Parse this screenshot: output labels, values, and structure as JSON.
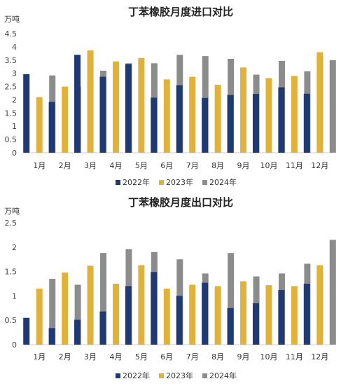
{
  "colors": {
    "2022年": "#1f3a73",
    "2023年": "#e0b23a",
    "2024年": "#8c8c8c"
  },
  "chart_data": [
    {
      "type": "bar",
      "title": "丁苯橡胶月度进口对比",
      "ylabel": "万吨",
      "categories": [
        "1月",
        "2月",
        "3月",
        "4月",
        "5月",
        "6月",
        "7月",
        "8月",
        "9月",
        "10月",
        "11月",
        "12月"
      ],
      "ylim": [
        0,
        4.5
      ],
      "yticks": [
        "0",
        "0.5",
        "1",
        "1.5",
        "2",
        "2.5",
        "3",
        "3.5",
        "4",
        "4.5"
      ],
      "legend": "bottom",
      "series": [
        {
          "name": "2022年",
          "values": [
            2.97,
            1.92,
            3.7,
            2.87,
            3.35,
            2.08,
            2.55,
            2.07,
            2.18,
            2.22,
            2.47,
            2.23
          ]
        },
        {
          "name": "2023年",
          "values": [
            2.1,
            2.5,
            3.87,
            3.45,
            3.58,
            2.77,
            2.87,
            2.57,
            3.22,
            2.82,
            2.9,
            3.8
          ]
        },
        {
          "name": "2024年",
          "values": [
            2.92,
            2.5,
            3.1,
            3.38,
            3.38,
            3.7,
            3.65,
            3.55,
            2.95,
            3.47,
            3.08,
            3.5
          ]
        }
      ]
    },
    {
      "type": "bar",
      "title": "丁苯橡胶月度出口对比",
      "ylabel": "万吨",
      "categories": [
        "1月",
        "2月",
        "3月",
        "4月",
        "5月",
        "6月",
        "7月",
        "8月",
        "9月",
        "10月",
        "11月",
        "12月"
      ],
      "ylim": [
        0,
        2.5
      ],
      "yticks": [
        "0",
        "0.5",
        "1",
        "1.5",
        "2",
        "2.5"
      ],
      "legend": "bottom",
      "series": [
        {
          "name": "2022年",
          "values": [
            0.55,
            0.34,
            0.51,
            0.68,
            1.2,
            1.49,
            1.0,
            1.27,
            0.75,
            0.85,
            1.12,
            1.25
          ]
        },
        {
          "name": "2023年",
          "values": [
            1.15,
            1.48,
            1.62,
            1.25,
            1.63,
            1.15,
            1.23,
            1.2,
            1.3,
            1.22,
            1.2,
            1.63
          ]
        },
        {
          "name": "2024年",
          "values": [
            1.35,
            1.23,
            1.88,
            1.96,
            1.9,
            1.75,
            1.46,
            1.88,
            1.4,
            1.46,
            1.66,
            2.15
          ]
        }
      ]
    }
  ]
}
